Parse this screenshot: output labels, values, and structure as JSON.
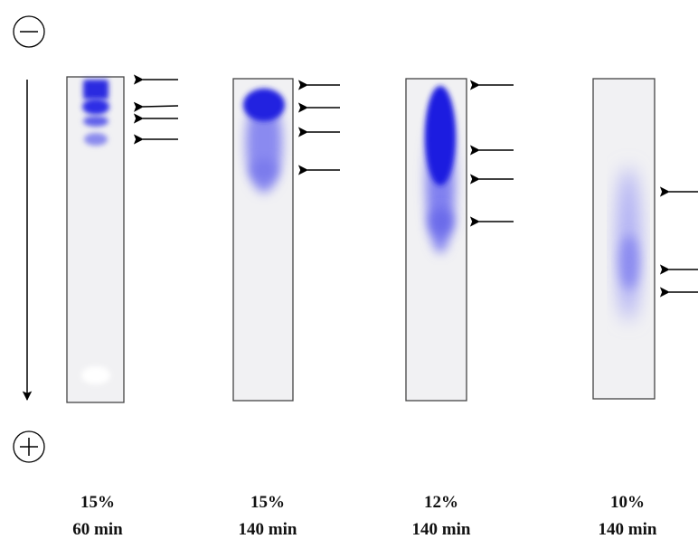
{
  "lanes": [
    {
      "percent": "15%",
      "time": "60 min"
    },
    {
      "percent": "15%",
      "time": "140 min"
    },
    {
      "percent": "12%",
      "time": "140 min"
    },
    {
      "percent": "10%",
      "time": "140 min"
    }
  ]
}
